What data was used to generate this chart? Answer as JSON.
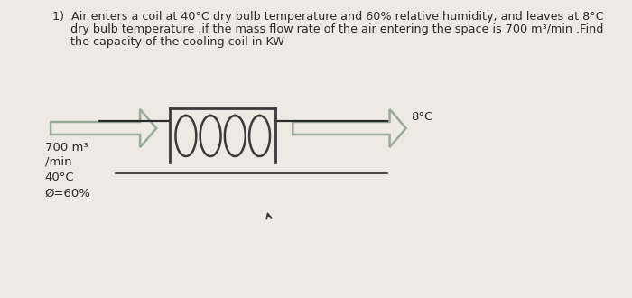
{
  "bg_color": "#edeae3",
  "title_line1": "1)  Air enters a coil at 40°C dry bulb temperature and 60% relative humidity, and leaves at 8°C",
  "title_line2": "     dry bulb temperature ,if the mass flow rate of the air entering the space is 700 m³/min .Find",
  "title_line3": "     the capacity of the cooling coil in KW",
  "label_8C": "8°C",
  "label_700": "700 m³",
  "label_min": "/min",
  "label_40C": "40°C",
  "label_phi": "Ø=60%",
  "line_color": "#2a2a2a",
  "arrow_color": "#9aaa96",
  "text_color": "#2a2a2a",
  "font_size_title": 9.2,
  "font_size_labels": 9.5,
  "coil_line_color": "#3a3a3a"
}
